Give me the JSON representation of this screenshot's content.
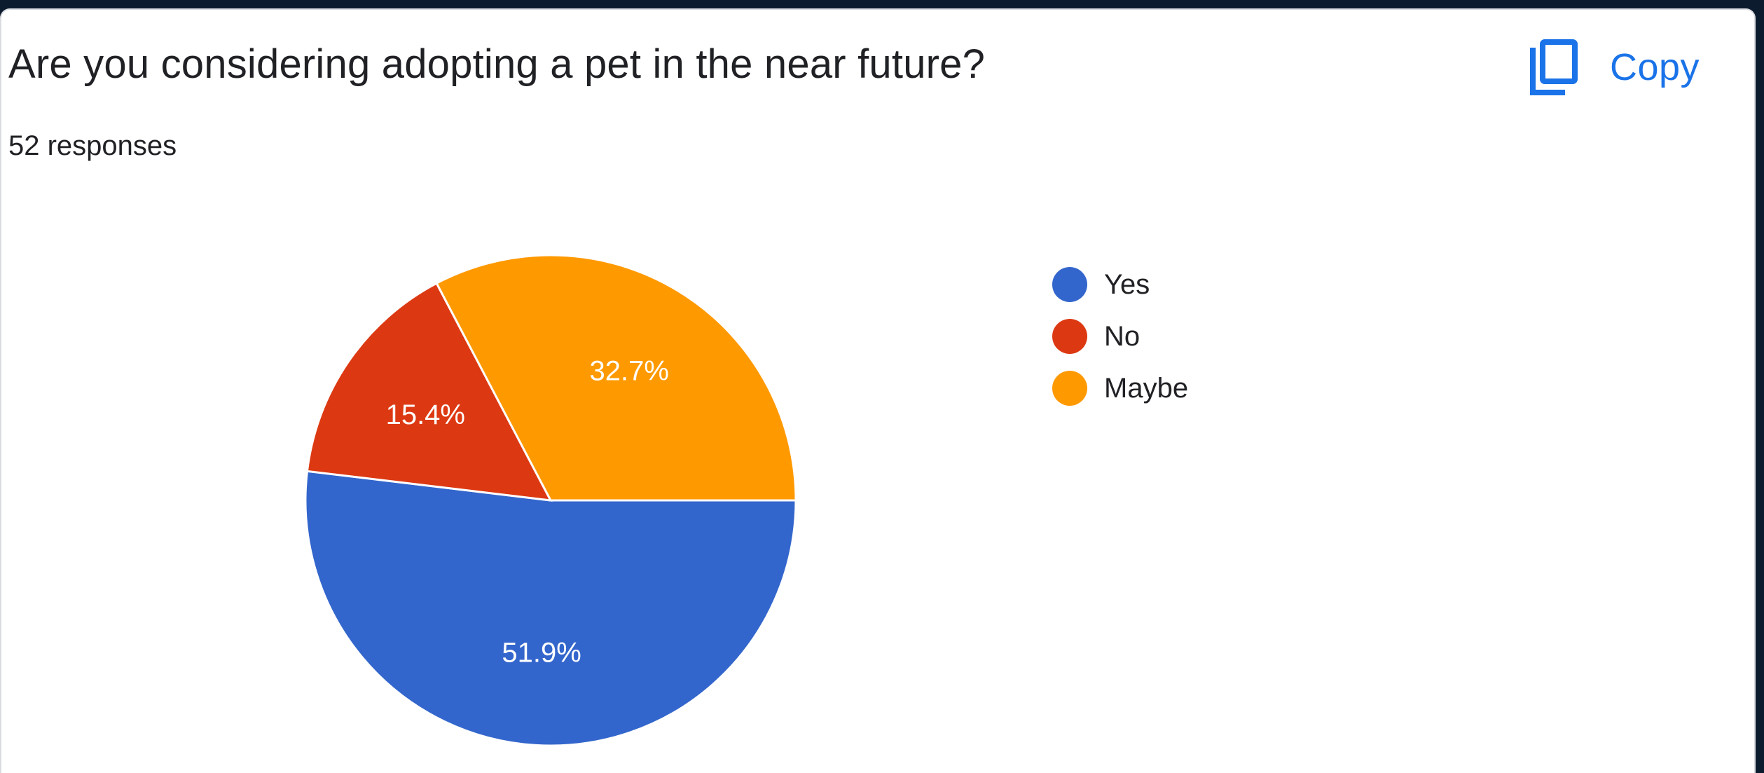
{
  "question": {
    "title": "Are you considering adopting a pet in the near future?",
    "responses": "52 responses"
  },
  "copy_button": {
    "label": "Copy",
    "icon": "copy-icon"
  },
  "chart_data": {
    "type": "pie",
    "categories": [
      "Yes",
      "No",
      "Maybe"
    ],
    "values": [
      51.9,
      15.4,
      32.7
    ],
    "labels": [
      "51.9%",
      "15.4%",
      "32.7%"
    ],
    "colors": [
      "#3366cc",
      "#dc3912",
      "#ff9900"
    ],
    "legend_position": "right"
  }
}
